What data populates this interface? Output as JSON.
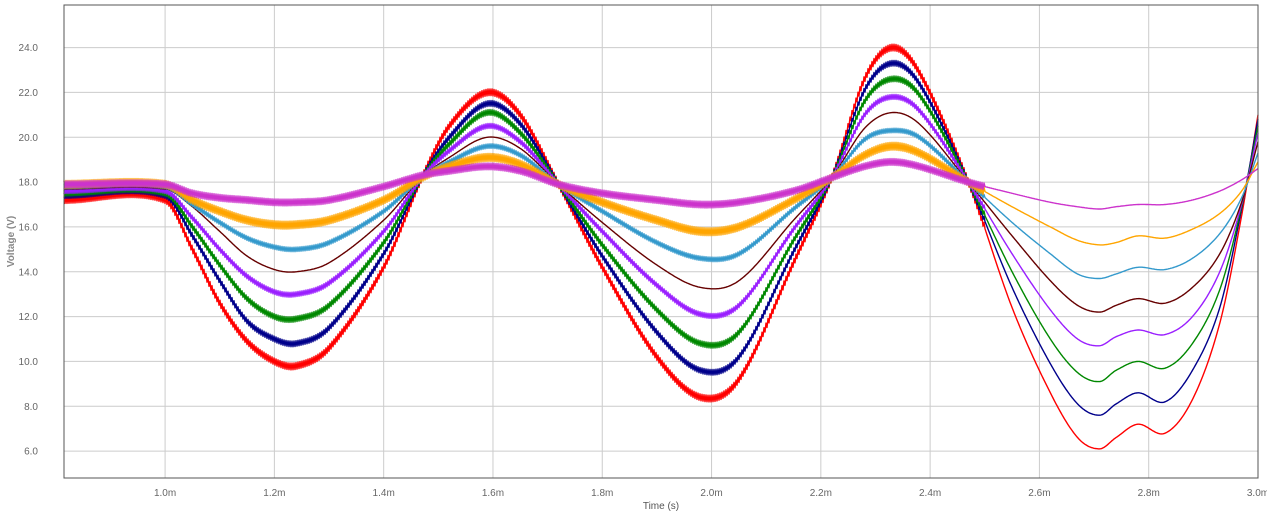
{
  "chart_data": {
    "type": "line",
    "xlabel": "Time (s)",
    "ylabel": "Voltage (V)",
    "xlim": [
      0.815,
      3.0
    ],
    "ylim": [
      4.8,
      25.9
    ],
    "x_ticks": [
      {
        "value": 1.0,
        "label": "1.0m"
      },
      {
        "value": 1.2,
        "label": "1.2m"
      },
      {
        "value": 1.4,
        "label": "1.4m"
      },
      {
        "value": 1.6,
        "label": "1.6m"
      },
      {
        "value": 1.8,
        "label": "1.8m"
      },
      {
        "value": 2.0,
        "label": "2.0m"
      },
      {
        "value": 2.2,
        "label": "2.2m"
      },
      {
        "value": 2.4,
        "label": "2.4m"
      },
      {
        "value": 2.6,
        "label": "2.6m"
      },
      {
        "value": 2.8,
        "label": "2.8m"
      },
      {
        "value": 3.0,
        "label": "3.0m"
      }
    ],
    "y_ticks": [
      {
        "value": 6.0,
        "label": "6.0"
      },
      {
        "value": 8.0,
        "label": "8.0"
      },
      {
        "value": 10.0,
        "label": "10.0"
      },
      {
        "value": 12.0,
        "label": "12.0"
      },
      {
        "value": 14.0,
        "label": "14.0"
      },
      {
        "value": 16.0,
        "label": "16.0"
      },
      {
        "value": 18.0,
        "label": "18.0"
      },
      {
        "value": 20.0,
        "label": "20.0"
      },
      {
        "value": 22.0,
        "label": "22.0"
      },
      {
        "value": 24.0,
        "label": "24.0"
      }
    ],
    "grid": true,
    "legend": "none",
    "series": [
      {
        "color": "#ff0000",
        "ripple": 0.3,
        "smooth_end": 2.5,
        "y_start": 17.2,
        "points": [
          [
            0.815,
            17.2
          ],
          [
            1.0,
            17.2
          ],
          [
            1.05,
            15.0
          ],
          [
            1.1,
            12.6
          ],
          [
            1.15,
            10.9
          ],
          [
            1.2,
            10.0
          ],
          [
            1.24,
            9.8
          ],
          [
            1.3,
            10.6
          ],
          [
            1.4,
            14.2
          ],
          [
            1.47,
            18.2
          ],
          [
            1.52,
            20.5
          ],
          [
            1.59,
            22.0
          ],
          [
            1.65,
            21.0
          ],
          [
            1.72,
            17.9
          ],
          [
            1.8,
            14.2
          ],
          [
            1.9,
            10.2
          ],
          [
            1.98,
            8.4
          ],
          [
            2.05,
            9.2
          ],
          [
            2.15,
            14.4
          ],
          [
            2.22,
            18.2
          ],
          [
            2.28,
            22.6
          ],
          [
            2.33,
            24.0
          ],
          [
            2.38,
            22.9
          ],
          [
            2.47,
            18.0
          ],
          [
            2.55,
            12.4
          ],
          [
            2.62,
            8.6
          ],
          [
            2.67,
            6.6
          ],
          [
            2.71,
            6.1
          ],
          [
            2.74,
            6.6
          ],
          [
            2.78,
            7.2
          ],
          [
            2.83,
            6.8
          ],
          [
            2.88,
            8.3
          ],
          [
            2.93,
            11.7
          ],
          [
            2.97,
            16.5
          ],
          [
            3.0,
            21.0
          ]
        ]
      },
      {
        "color": "#00008b",
        "ripple": 0.25,
        "smooth_end": 2.5,
        "y_start": 17.4,
        "points": [
          [
            0.815,
            17.4
          ],
          [
            1.0,
            17.4
          ],
          [
            1.05,
            15.6
          ],
          [
            1.1,
            13.6
          ],
          [
            1.15,
            11.8
          ],
          [
            1.2,
            11.0
          ],
          [
            1.24,
            10.8
          ],
          [
            1.3,
            11.5
          ],
          [
            1.4,
            14.8
          ],
          [
            1.47,
            18.2
          ],
          [
            1.52,
            20.0
          ],
          [
            1.59,
            21.5
          ],
          [
            1.65,
            20.6
          ],
          [
            1.72,
            17.9
          ],
          [
            1.8,
            14.7
          ],
          [
            1.9,
            11.3
          ],
          [
            1.98,
            9.6
          ],
          [
            2.05,
            10.2
          ],
          [
            2.15,
            14.9
          ],
          [
            2.22,
            18.2
          ],
          [
            2.28,
            22.1
          ],
          [
            2.33,
            23.3
          ],
          [
            2.38,
            22.4
          ],
          [
            2.47,
            18.0
          ],
          [
            2.55,
            13.3
          ],
          [
            2.62,
            9.9
          ],
          [
            2.67,
            8.1
          ],
          [
            2.71,
            7.6
          ],
          [
            2.74,
            8.1
          ],
          [
            2.78,
            8.6
          ],
          [
            2.83,
            8.2
          ],
          [
            2.88,
            9.6
          ],
          [
            2.93,
            12.4
          ],
          [
            2.97,
            16.8
          ],
          [
            3.0,
            20.8
          ]
        ]
      },
      {
        "color": "#008800",
        "ripple": 0.25,
        "smooth_end": 2.5,
        "y_start": 17.5,
        "points": [
          [
            0.815,
            17.5
          ],
          [
            1.0,
            17.5
          ],
          [
            1.05,
            16.0
          ],
          [
            1.1,
            14.3
          ],
          [
            1.15,
            12.8
          ],
          [
            1.2,
            12.0
          ],
          [
            1.24,
            11.9
          ],
          [
            1.3,
            12.5
          ],
          [
            1.4,
            15.3
          ],
          [
            1.47,
            18.2
          ],
          [
            1.52,
            19.7
          ],
          [
            1.59,
            21.1
          ],
          [
            1.65,
            20.2
          ],
          [
            1.72,
            17.9
          ],
          [
            1.8,
            15.2
          ],
          [
            1.9,
            12.3
          ],
          [
            1.98,
            10.8
          ],
          [
            2.05,
            11.3
          ],
          [
            2.15,
            15.4
          ],
          [
            2.22,
            18.2
          ],
          [
            2.28,
            21.6
          ],
          [
            2.33,
            22.6
          ],
          [
            2.38,
            21.9
          ],
          [
            2.47,
            18.0
          ],
          [
            2.55,
            14.0
          ],
          [
            2.62,
            11.0
          ],
          [
            2.67,
            9.5
          ],
          [
            2.71,
            9.1
          ],
          [
            2.74,
            9.6
          ],
          [
            2.78,
            10.0
          ],
          [
            2.83,
            9.7
          ],
          [
            2.88,
            10.8
          ],
          [
            2.93,
            13.2
          ],
          [
            2.97,
            16.9
          ],
          [
            3.0,
            20.5
          ]
        ]
      },
      {
        "color": "#9a1fff",
        "ripple": 0.22,
        "smooth_end": 2.5,
        "y_start": 17.6,
        "points": [
          [
            0.815,
            17.6
          ],
          [
            1.0,
            17.6
          ],
          [
            1.05,
            16.4
          ],
          [
            1.1,
            15.0
          ],
          [
            1.15,
            13.8
          ],
          [
            1.2,
            13.1
          ],
          [
            1.24,
            13.0
          ],
          [
            1.3,
            13.5
          ],
          [
            1.4,
            15.8
          ],
          [
            1.47,
            18.2
          ],
          [
            1.52,
            19.4
          ],
          [
            1.59,
            20.5
          ],
          [
            1.65,
            19.8
          ],
          [
            1.72,
            17.9
          ],
          [
            1.8,
            15.8
          ],
          [
            1.9,
            13.4
          ],
          [
            1.98,
            12.1
          ],
          [
            2.05,
            12.5
          ],
          [
            2.15,
            15.9
          ],
          [
            2.22,
            18.2
          ],
          [
            2.28,
            21.0
          ],
          [
            2.33,
            21.8
          ],
          [
            2.38,
            21.2
          ],
          [
            2.47,
            18.0
          ],
          [
            2.55,
            14.8
          ],
          [
            2.62,
            12.3
          ],
          [
            2.67,
            11.0
          ],
          [
            2.71,
            10.7
          ],
          [
            2.74,
            11.1
          ],
          [
            2.78,
            11.4
          ],
          [
            2.83,
            11.2
          ],
          [
            2.88,
            12.0
          ],
          [
            2.93,
            14.0
          ],
          [
            2.97,
            17.0
          ],
          [
            3.0,
            20.2
          ]
        ]
      },
      {
        "color": "#660000",
        "ripple": 0.05,
        "smooth_end": 1.0,
        "y_start": 17.7,
        "points": [
          [
            0.815,
            17.7
          ],
          [
            1.0,
            17.7
          ],
          [
            1.05,
            16.9
          ],
          [
            1.1,
            15.8
          ],
          [
            1.15,
            14.7
          ],
          [
            1.2,
            14.1
          ],
          [
            1.24,
            14.0
          ],
          [
            1.3,
            14.4
          ],
          [
            1.4,
            16.3
          ],
          [
            1.47,
            18.2
          ],
          [
            1.52,
            19.1
          ],
          [
            1.59,
            20.0
          ],
          [
            1.65,
            19.5
          ],
          [
            1.72,
            17.9
          ],
          [
            1.8,
            16.2
          ],
          [
            1.9,
            14.3
          ],
          [
            1.98,
            13.3
          ],
          [
            2.05,
            13.6
          ],
          [
            2.15,
            16.3
          ],
          [
            2.22,
            18.2
          ],
          [
            2.28,
            20.4
          ],
          [
            2.33,
            21.1
          ],
          [
            2.38,
            20.6
          ],
          [
            2.47,
            18.0
          ],
          [
            2.55,
            15.6
          ],
          [
            2.62,
            13.6
          ],
          [
            2.67,
            12.5
          ],
          [
            2.71,
            12.2
          ],
          [
            2.74,
            12.5
          ],
          [
            2.78,
            12.8
          ],
          [
            2.83,
            12.6
          ],
          [
            2.88,
            13.3
          ],
          [
            2.93,
            14.8
          ],
          [
            2.97,
            17.1
          ],
          [
            3.0,
            19.8
          ]
        ]
      },
      {
        "color": "#3399cc",
        "ripple": 0.2,
        "smooth_end": 2.5,
        "y_start": 17.8,
        "points": [
          [
            0.815,
            17.8
          ],
          [
            1.0,
            17.8
          ],
          [
            1.05,
            17.0
          ],
          [
            1.1,
            16.2
          ],
          [
            1.15,
            15.5
          ],
          [
            1.2,
            15.1
          ],
          [
            1.24,
            15.0
          ],
          [
            1.3,
            15.3
          ],
          [
            1.4,
            16.7
          ],
          [
            1.47,
            18.2
          ],
          [
            1.52,
            18.9
          ],
          [
            1.59,
            19.6
          ],
          [
            1.65,
            19.2
          ],
          [
            1.72,
            17.9
          ],
          [
            1.8,
            16.7
          ],
          [
            1.9,
            15.3
          ],
          [
            1.98,
            14.6
          ],
          [
            2.05,
            14.8
          ],
          [
            2.15,
            16.8
          ],
          [
            2.22,
            18.2
          ],
          [
            2.28,
            19.9
          ],
          [
            2.33,
            20.3
          ],
          [
            2.38,
            20.0
          ],
          [
            2.47,
            18.0
          ],
          [
            2.55,
            16.2
          ],
          [
            2.62,
            14.8
          ],
          [
            2.67,
            13.9
          ],
          [
            2.71,
            13.7
          ],
          [
            2.74,
            13.9
          ],
          [
            2.78,
            14.2
          ],
          [
            2.83,
            14.1
          ],
          [
            2.88,
            14.6
          ],
          [
            2.93,
            15.7
          ],
          [
            2.97,
            17.3
          ],
          [
            3.0,
            19.3
          ]
        ]
      },
      {
        "color": "#ffa500",
        "ripple": 0.35,
        "smooth_end": 2.5,
        "y_start": 17.9,
        "points": [
          [
            0.815,
            17.9
          ],
          [
            1.0,
            17.9
          ],
          [
            1.05,
            17.2
          ],
          [
            1.1,
            16.7
          ],
          [
            1.15,
            16.3
          ],
          [
            1.2,
            16.1
          ],
          [
            1.24,
            16.1
          ],
          [
            1.3,
            16.3
          ],
          [
            1.4,
            17.2
          ],
          [
            1.47,
            18.2
          ],
          [
            1.52,
            18.7
          ],
          [
            1.59,
            19.1
          ],
          [
            1.65,
            18.8
          ],
          [
            1.72,
            17.9
          ],
          [
            1.8,
            17.1
          ],
          [
            1.9,
            16.3
          ],
          [
            1.98,
            15.8
          ],
          [
            2.05,
            16.0
          ],
          [
            2.15,
            17.2
          ],
          [
            2.22,
            18.2
          ],
          [
            2.28,
            19.2
          ],
          [
            2.33,
            19.6
          ],
          [
            2.38,
            19.3
          ],
          [
            2.47,
            18.0
          ],
          [
            2.55,
            16.9
          ],
          [
            2.62,
            16.0
          ],
          [
            2.67,
            15.4
          ],
          [
            2.71,
            15.2
          ],
          [
            2.74,
            15.3
          ],
          [
            2.78,
            15.6
          ],
          [
            2.83,
            15.5
          ],
          [
            2.88,
            15.9
          ],
          [
            2.93,
            16.6
          ],
          [
            2.97,
            17.6
          ],
          [
            3.0,
            18.9
          ]
        ]
      },
      {
        "color": "#cc33cc",
        "ripple": 0.3,
        "smooth_end": 2.5,
        "y_start": 17.9,
        "points": [
          [
            0.815,
            17.9
          ],
          [
            1.0,
            17.9
          ],
          [
            1.05,
            17.5
          ],
          [
            1.1,
            17.3
          ],
          [
            1.15,
            17.2
          ],
          [
            1.2,
            17.1
          ],
          [
            1.24,
            17.1
          ],
          [
            1.3,
            17.2
          ],
          [
            1.4,
            17.8
          ],
          [
            1.47,
            18.3
          ],
          [
            1.52,
            18.5
          ],
          [
            1.59,
            18.7
          ],
          [
            1.65,
            18.5
          ],
          [
            1.72,
            17.9
          ],
          [
            1.8,
            17.5
          ],
          [
            1.9,
            17.2
          ],
          [
            1.98,
            17.0
          ],
          [
            2.05,
            17.1
          ],
          [
            2.15,
            17.6
          ],
          [
            2.22,
            18.2
          ],
          [
            2.28,
            18.7
          ],
          [
            2.33,
            18.9
          ],
          [
            2.38,
            18.7
          ],
          [
            2.47,
            18.0
          ],
          [
            2.55,
            17.5
          ],
          [
            2.62,
            17.1
          ],
          [
            2.67,
            16.9
          ],
          [
            2.71,
            16.8
          ],
          [
            2.74,
            16.9
          ],
          [
            2.78,
            17.0
          ],
          [
            2.83,
            17.0
          ],
          [
            2.88,
            17.2
          ],
          [
            2.93,
            17.6
          ],
          [
            2.97,
            18.1
          ],
          [
            3.0,
            18.6
          ]
        ]
      }
    ]
  }
}
